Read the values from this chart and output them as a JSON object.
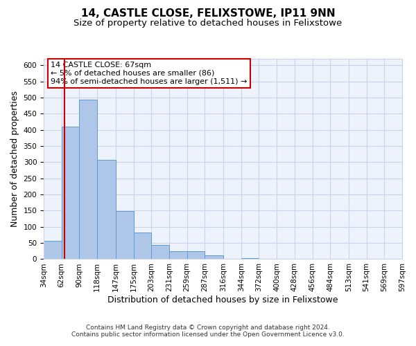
{
  "title": "14, CASTLE CLOSE, FELIXSTOWE, IP11 9NN",
  "subtitle": "Size of property relative to detached houses in Felixstowe",
  "xlabel": "Distribution of detached houses by size in Felixstowe",
  "ylabel": "Number of detached properties",
  "bar_values": [
    57,
    410,
    493,
    307,
    148,
    82,
    44,
    25,
    25,
    11,
    0,
    4,
    0,
    0,
    0,
    0,
    0,
    0,
    0,
    0
  ],
  "bin_edges": [
    34,
    62,
    90,
    118,
    147,
    175,
    203,
    231,
    259,
    287,
    316,
    344,
    372,
    400,
    428,
    456,
    484,
    513,
    541,
    569,
    597
  ],
  "tick_labels": [
    "34sqm",
    "62sqm",
    "90sqm",
    "118sqm",
    "147sqm",
    "175sqm",
    "203sqm",
    "231sqm",
    "259sqm",
    "287sqm",
    "316sqm",
    "344sqm",
    "372sqm",
    "400sqm",
    "428sqm",
    "456sqm",
    "484sqm",
    "513sqm",
    "541sqm",
    "569sqm",
    "597sqm"
  ],
  "bar_color": "#aec6e8",
  "bar_edgecolor": "#5b9bd5",
  "ylim": [
    0,
    620
  ],
  "yticks": [
    0,
    50,
    100,
    150,
    200,
    250,
    300,
    350,
    400,
    450,
    500,
    550,
    600
  ],
  "vline_x": 67,
  "vline_color": "#cc0000",
  "annotation_text": "14 CASTLE CLOSE: 67sqm\n← 5% of detached houses are smaller (86)\n94% of semi-detached houses are larger (1,511) →",
  "annotation_box_edgecolor": "#cc0000",
  "footer_line1": "Contains HM Land Registry data © Crown copyright and database right 2024.",
  "footer_line2": "Contains public sector information licensed under the Open Government Licence v3.0.",
  "background_color": "#eef2fb",
  "grid_color": "#c8d4ee",
  "title_fontsize": 11,
  "subtitle_fontsize": 9.5,
  "axis_label_fontsize": 9,
  "tick_fontsize": 7.5,
  "annotation_fontsize": 8,
  "footer_fontsize": 6.5
}
